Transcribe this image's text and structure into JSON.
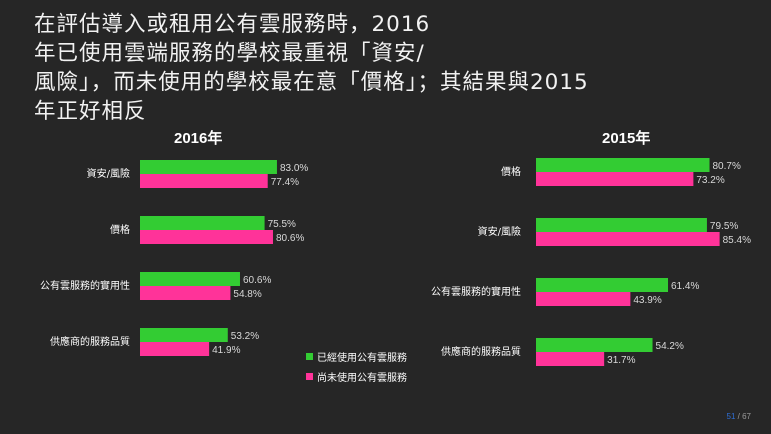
{
  "title_lines": [
    "在評估導入或租用公有雲服務時，2016",
    "年已使用雲端服務的學校最重視「資安/",
    "風險」，而未使用的學校最在意「價格」；其結果與2015",
    "年正好相反"
  ],
  "colors": {
    "used": "#33cc33",
    "unused": "#ff3399",
    "background": "#262626"
  },
  "chart_data": [
    {
      "type": "bar",
      "orientation": "horizontal",
      "title": "2016年",
      "categories": [
        "資安/風險",
        "價格",
        "公有雲服務的實用性",
        "供應商的服務品質"
      ],
      "series": [
        {
          "name": "已經使用公有雲服務",
          "values": [
            83.0,
            75.5,
            60.6,
            53.2
          ]
        },
        {
          "name": "尚未使用公有雲服務",
          "values": [
            77.4,
            80.6,
            54.8,
            41.9
          ]
        }
      ],
      "value_labels": [
        [
          "83.0%",
          "75.5%",
          "60.6%",
          "53.2%"
        ],
        [
          "77.4%",
          "80.6%",
          "54.8%",
          "41.9%"
        ]
      ],
      "xlim": [
        0,
        100
      ]
    },
    {
      "type": "bar",
      "orientation": "horizontal",
      "title": "2015年",
      "categories": [
        "價格",
        "資安/風險",
        "公有雲服務的實用性",
        "供應商的服務品質"
      ],
      "series": [
        {
          "name": "已經使用公有雲服務",
          "values": [
            80.7,
            79.5,
            61.4,
            54.2
          ]
        },
        {
          "name": "尚未使用公有雲服務",
          "values": [
            73.2,
            85.4,
            43.9,
            31.7
          ]
        }
      ],
      "value_labels": [
        [
          "80.7%",
          "79.5%",
          "61.4%",
          "54.2%"
        ],
        [
          "73.2%",
          "85.4%",
          "43.9%",
          "31.7%"
        ]
      ],
      "xlim": [
        0,
        100
      ]
    }
  ],
  "legend": {
    "used_label": "已經使用公有雲服務",
    "unused_label": "尚未使用公有雲服務"
  },
  "page": {
    "current": "51",
    "total": "/ 67"
  }
}
